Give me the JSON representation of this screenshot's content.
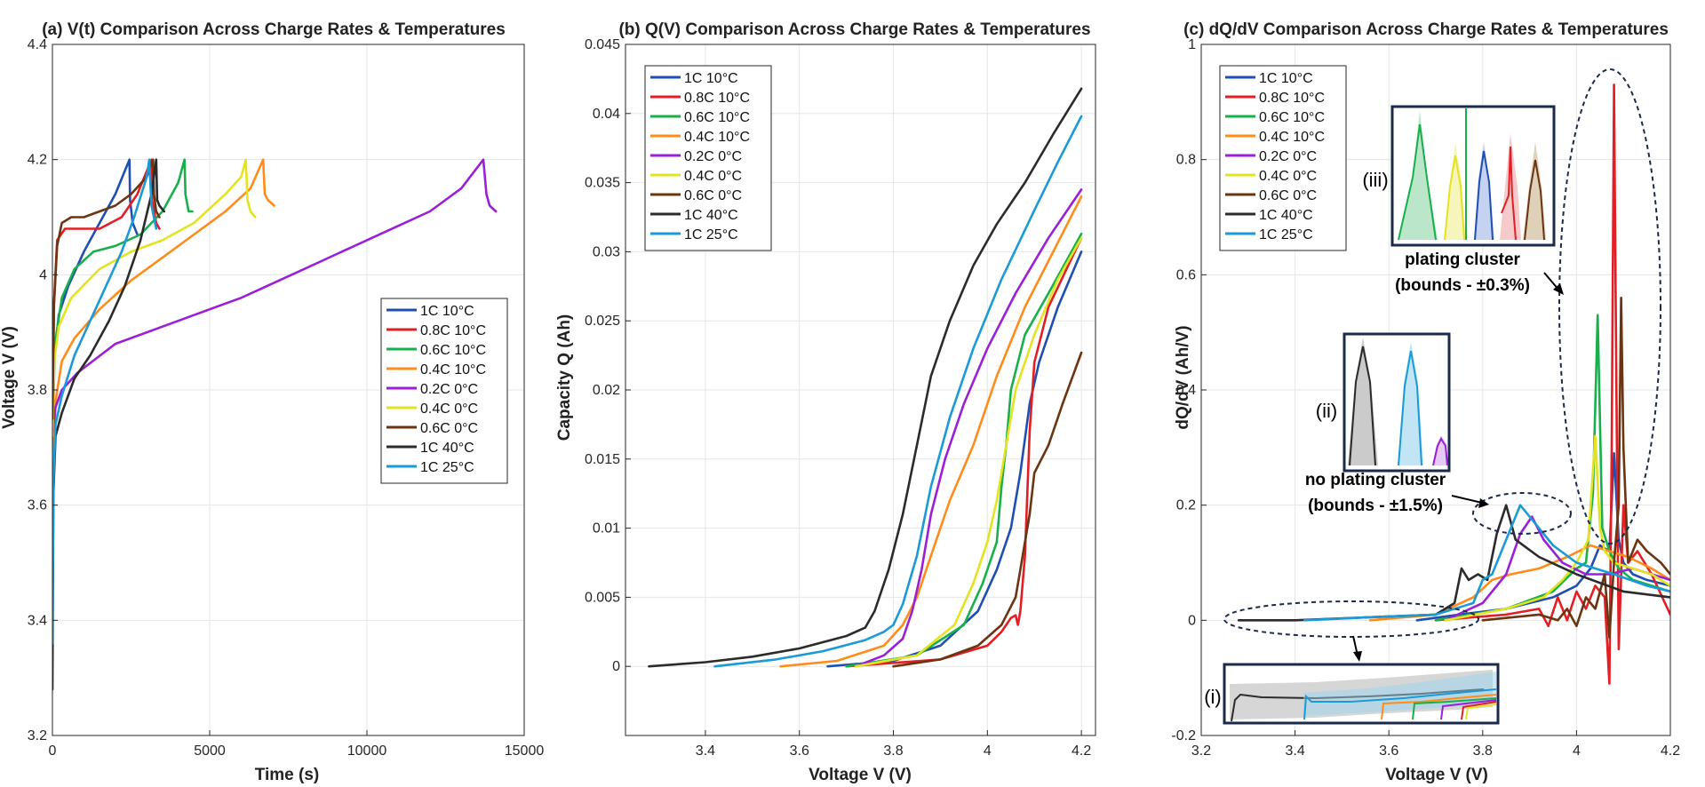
{
  "series_colors": {
    "1C 10°C": "#1f4fb3",
    "0.8C 10°C": "#e31e24",
    "0.6C 10°C": "#17b04a",
    "0.4C 10°C": "#ff8c1a",
    "0.2C 0°C": "#9b1fd6",
    "0.4C 0°C": "#e3e321",
    "0.6C 0°C": "#6b3512",
    "1C 40°C": "#2b2b2b",
    "1C 25°C": "#1a9bd7"
  },
  "chart_data": [
    {
      "type": "line",
      "title": "(a) V(t) Comparison Across Charge Rates & Temperatures",
      "xlabel": "Time (s)",
      "ylabel": "Voltage V (V)",
      "xlim": [
        0,
        15000
      ],
      "ylim": [
        3.2,
        4.4
      ],
      "xticks": [
        0,
        5000,
        10000,
        15000
      ],
      "xtick_labels": [
        "0",
        "5000",
        "10000",
        "15000"
      ],
      "yticks": [
        3.2,
        3.4,
        3.6,
        3.8,
        4.0,
        4.2,
        4.4
      ],
      "ytick_labels": [
        "3.2",
        "3.4",
        "3.6",
        "3.8",
        "4",
        "4.2",
        "4.4"
      ],
      "grid": true,
      "legend": [
        "1C 10°C",
        "0.8C 10°C",
        "0.6C 10°C",
        "0.4C 10°C",
        "0.2C 0°C",
        "0.4C 0°C",
        "0.6C 0°C",
        "1C 40°C",
        "1C 25°C"
      ],
      "series": [
        {
          "name": "1C 10°C",
          "x": [
            0,
            50,
            200,
            500,
            1000,
            1500,
            2000,
            2300,
            2450,
            2470,
            2550,
            2700
          ],
          "y": [
            3.66,
            3.85,
            3.93,
            3.98,
            4.04,
            4.09,
            4.14,
            4.18,
            4.2,
            4.13,
            4.09,
            4.07
          ]
        },
        {
          "name": "0.8C 10°C",
          "x": [
            0,
            50,
            150,
            400,
            800,
            1500,
            2200,
            2700,
            3000,
            3150,
            3170,
            3300,
            3400
          ],
          "y": [
            3.7,
            3.95,
            4.06,
            4.08,
            4.08,
            4.08,
            4.1,
            4.14,
            4.18,
            4.2,
            4.13,
            4.09,
            4.08
          ]
        },
        {
          "name": "0.6C 10°C",
          "x": [
            0,
            80,
            300,
            700,
            1300,
            2000,
            2800,
            3500,
            4000,
            4200,
            4230,
            4330,
            4450
          ],
          "y": [
            3.7,
            3.88,
            3.96,
            4.01,
            4.04,
            4.05,
            4.07,
            4.11,
            4.16,
            4.2,
            4.14,
            4.11,
            4.11
          ]
        },
        {
          "name": "0.4C 10°C",
          "x": [
            0,
            100,
            300,
            700,
            1500,
            2500,
            3500,
            4500,
            5500,
            6300,
            6700,
            6750,
            6850,
            7050
          ],
          "y": [
            3.6,
            3.78,
            3.85,
            3.89,
            3.94,
            3.99,
            4.03,
            4.07,
            4.11,
            4.15,
            4.2,
            4.14,
            4.13,
            4.12
          ]
        },
        {
          "name": "0.2C 0°C",
          "x": [
            0,
            100,
            300,
            800,
            2000,
            4000,
            6000,
            8000,
            10000,
            12000,
            13000,
            13700,
            13800,
            13900,
            14100
          ],
          "y": [
            3.72,
            3.77,
            3.8,
            3.83,
            3.88,
            3.92,
            3.96,
            4.01,
            4.06,
            4.11,
            4.15,
            4.2,
            4.14,
            4.12,
            4.11
          ]
        },
        {
          "name": "0.4C 0°C",
          "x": [
            0,
            60,
            200,
            600,
            1500,
            2500,
            3500,
            4500,
            5500,
            6000,
            6150,
            6200,
            6300,
            6450
          ],
          "y": [
            3.72,
            3.85,
            3.91,
            3.96,
            4.01,
            4.04,
            4.06,
            4.09,
            4.14,
            4.17,
            4.2,
            4.13,
            4.11,
            4.1
          ]
        },
        {
          "name": "0.6C 0°C",
          "x": [
            0,
            50,
            150,
            300,
            600,
            1000,
            1500,
            2000,
            2500,
            3000,
            3200,
            3230,
            3300,
            3400
          ],
          "y": [
            3.75,
            3.95,
            4.05,
            4.09,
            4.1,
            4.1,
            4.11,
            4.12,
            4.14,
            4.17,
            4.2,
            4.14,
            4.11,
            4.1
          ]
        },
        {
          "name": "1C 40°C",
          "x": [
            0,
            30,
            100,
            300,
            700,
            1200,
            1800,
            2300,
            2800,
            3150,
            3300,
            3330,
            3400,
            3550
          ],
          "y": [
            3.28,
            3.62,
            3.72,
            3.76,
            3.82,
            3.86,
            3.92,
            3.98,
            4.06,
            4.14,
            4.2,
            4.13,
            4.12,
            4.11
          ]
        },
        {
          "name": "1C 25°C",
          "x": [
            0,
            30,
            100,
            300,
            700,
            1200,
            1700,
            2200,
            2600,
            3000,
            3080,
            3150,
            3300
          ],
          "y": [
            3.36,
            3.64,
            3.74,
            3.79,
            3.86,
            3.92,
            3.98,
            4.04,
            4.1,
            4.17,
            4.2,
            4.12,
            4.08
          ]
        }
      ]
    },
    {
      "type": "line",
      "title": "(b) Q(V) Comparison Across Charge Rates & Temperatures",
      "xlabel": "Voltage V (V)",
      "ylabel": "Capacity Q (Ah)",
      "xlim": [
        3.23,
        4.23
      ],
      "ylim": [
        -0.005,
        0.045
      ],
      "xticks": [
        3.4,
        3.6,
        3.8,
        4.0,
        4.2
      ],
      "xtick_labels": [
        "3.4",
        "3.6",
        "3.8",
        "4",
        "4.2"
      ],
      "yticks": [
        0,
        0.005,
        0.01,
        0.015,
        0.02,
        0.025,
        0.03,
        0.035,
        0.04,
        0.045
      ],
      "ytick_labels": [
        "0",
        "0.005",
        "0.01",
        "0.015",
        "0.02",
        "0.025",
        "0.03",
        "0.035",
        "0.04",
        "0.045"
      ],
      "grid": true,
      "legend": [
        "1C 10°C",
        "0.8C 10°C",
        "0.6C 10°C",
        "0.4C 10°C",
        "0.2C 0°C",
        "0.4C 0°C",
        "0.6C 0°C",
        "1C 40°C",
        "1C 25°C"
      ],
      "series": [
        {
          "name": "1C 10°C",
          "x": [
            3.66,
            3.8,
            3.9,
            3.98,
            4.02,
            4.05,
            4.07,
            4.09,
            4.11,
            4.15,
            4.2
          ],
          "y": [
            0,
            0.0004,
            0.0015,
            0.004,
            0.007,
            0.01,
            0.014,
            0.019,
            0.022,
            0.026,
            0.03
          ]
        },
        {
          "name": "0.8C 10°C",
          "x": [
            3.7,
            3.9,
            4.0,
            4.03,
            4.04,
            4.05,
            4.06,
            4.065,
            4.07,
            4.08,
            4.09,
            4.1,
            4.13,
            4.2
          ],
          "y": [
            0,
            0.0005,
            0.0015,
            0.0025,
            0.003,
            0.0035,
            0.0037,
            0.003,
            0.004,
            0.008,
            0.017,
            0.022,
            0.026,
            0.031
          ]
        },
        {
          "name": "0.6C 10°C",
          "x": [
            3.7,
            3.85,
            3.95,
            3.99,
            4.02,
            4.03,
            4.04,
            4.05,
            4.08,
            4.13,
            4.2
          ],
          "y": [
            0,
            0.0008,
            0.003,
            0.006,
            0.009,
            0.013,
            0.016,
            0.02,
            0.024,
            0.027,
            0.0313
          ]
        },
        {
          "name": "0.4C 10°C",
          "x": [
            3.56,
            3.68,
            3.78,
            3.82,
            3.85,
            3.88,
            3.92,
            3.97,
            4.02,
            4.08,
            4.14,
            4.2
          ],
          "y": [
            0,
            0.0004,
            0.0015,
            0.003,
            0.005,
            0.008,
            0.012,
            0.016,
            0.021,
            0.026,
            0.03,
            0.034
          ]
        },
        {
          "name": "0.2C 0°C",
          "x": [
            3.72,
            3.78,
            3.82,
            3.84,
            3.86,
            3.88,
            3.91,
            3.95,
            4.0,
            4.06,
            4.13,
            4.2
          ],
          "y": [
            0,
            0.0008,
            0.002,
            0.004,
            0.007,
            0.011,
            0.015,
            0.019,
            0.023,
            0.027,
            0.031,
            0.0345
          ]
        },
        {
          "name": "0.4C 0°C",
          "x": [
            3.72,
            3.85,
            3.93,
            3.97,
            4.0,
            4.02,
            4.04,
            4.06,
            4.1,
            4.15,
            4.2
          ],
          "y": [
            0,
            0.0008,
            0.003,
            0.006,
            0.009,
            0.012,
            0.016,
            0.02,
            0.024,
            0.028,
            0.031
          ]
        },
        {
          "name": "0.6C 0°C",
          "x": [
            3.8,
            3.9,
            3.98,
            4.03,
            4.06,
            4.07,
            4.08,
            4.09,
            4.1,
            4.13,
            4.16,
            4.2
          ],
          "y": [
            0,
            0.0005,
            0.0015,
            0.003,
            0.005,
            0.007,
            0.009,
            0.011,
            0.014,
            0.016,
            0.019,
            0.0227
          ]
        },
        {
          "name": "1C 40°C",
          "x": [
            3.28,
            3.4,
            3.5,
            3.6,
            3.7,
            3.74,
            3.76,
            3.79,
            3.82,
            3.85,
            3.88,
            3.92,
            3.97,
            4.02,
            4.08,
            4.14,
            4.2
          ],
          "y": [
            0,
            0.0003,
            0.0007,
            0.0013,
            0.0022,
            0.0028,
            0.004,
            0.007,
            0.011,
            0.016,
            0.021,
            0.025,
            0.029,
            0.032,
            0.035,
            0.0385,
            0.0418
          ]
        },
        {
          "name": "1C 25°C",
          "x": [
            3.42,
            3.55,
            3.65,
            3.74,
            3.78,
            3.8,
            3.82,
            3.85,
            3.88,
            3.92,
            3.97,
            4.03,
            4.1,
            4.15,
            4.2
          ],
          "y": [
            0,
            0.0005,
            0.0011,
            0.0019,
            0.0025,
            0.003,
            0.0045,
            0.008,
            0.013,
            0.018,
            0.023,
            0.028,
            0.033,
            0.0365,
            0.0398
          ]
        }
      ]
    },
    {
      "type": "line",
      "title": "(c) dQ/dV Comparison Across Charge Rates & Temperatures",
      "xlabel": "Voltage V (V)",
      "ylabel": "dQ/dV (Ah/V)",
      "xlim": [
        3.2,
        4.2
      ],
      "ylim": [
        -0.2,
        1.0
      ],
      "xticks": [
        3.2,
        3.4,
        3.6,
        3.8,
        4.0,
        4.2
      ],
      "xtick_labels": [
        "3.2",
        "3.4",
        "3.6",
        "3.8",
        "4",
        "4.2"
      ],
      "yticks": [
        -0.2,
        0,
        0.2,
        0.4,
        0.6,
        0.8,
        1.0
      ],
      "ytick_labels": [
        "-0.2",
        "0",
        "0.2",
        "0.4",
        "0.6",
        "0.8",
        "1"
      ],
      "grid": true,
      "legend": [
        "1C 10°C",
        "0.8C 10°C",
        "0.6C 10°C",
        "0.4C 10°C",
        "0.2C 0°C",
        "0.4C 0°C",
        "0.6C 0°C",
        "1C 40°C",
        "1C 25°C"
      ],
      "annotations": {
        "plating_cluster": "plating cluster",
        "plating_bounds": "(bounds - ±0.3%)",
        "no_plating_cluster": "no plating cluster",
        "no_plating_bounds": "(bounds - ±1.5%)",
        "inset_i": "(i)",
        "inset_ii": "(ii)",
        "inset_iii": "(iii)"
      },
      "series": [
        {
          "name": "1C 10°C",
          "x": [
            3.66,
            3.75,
            3.85,
            3.95,
            4.0,
            4.03,
            4.05,
            4.07,
            4.08,
            4.09,
            4.1,
            4.12,
            4.15,
            4.2
          ],
          "y": [
            0,
            0.01,
            0.02,
            0.04,
            0.06,
            0.09,
            0.13,
            0.12,
            0.29,
            0.14,
            0.1,
            0.08,
            0.07,
            0.06
          ]
        },
        {
          "name": "0.8C 10°C",
          "x": [
            3.7,
            3.85,
            3.92,
            3.94,
            3.96,
            3.98,
            4.0,
            4.02,
            4.04,
            4.06,
            4.07,
            4.075,
            4.08,
            4.085,
            4.09,
            4.1,
            4.11,
            4.13,
            4.16,
            4.2
          ],
          "y": [
            0,
            0.01,
            0.02,
            -0.01,
            0.04,
            0.0,
            0.05,
            0.02,
            0.06,
            0.04,
            -0.11,
            0.3,
            0.93,
            0.4,
            -0.05,
            0.2,
            0.1,
            0.12,
            0.08,
            0.01
          ]
        },
        {
          "name": "0.6C 10°C",
          "x": [
            3.7,
            3.85,
            3.95,
            4.0,
            4.02,
            4.035,
            4.045,
            4.055,
            4.07,
            4.09,
            4.12,
            4.16,
            4.2
          ],
          "y": [
            0,
            0.02,
            0.05,
            0.09,
            0.1,
            0.22,
            0.53,
            0.16,
            0.12,
            0.09,
            0.07,
            0.06,
            0.05
          ]
        },
        {
          "name": "0.4C 10°C",
          "x": [
            3.56,
            3.7,
            3.78,
            3.82,
            3.86,
            3.92,
            3.98,
            4.03,
            4.07,
            4.11,
            4.16,
            4.2
          ],
          "y": [
            0,
            0.01,
            0.04,
            0.07,
            0.08,
            0.09,
            0.11,
            0.13,
            0.12,
            0.11,
            0.09,
            0.07
          ]
        },
        {
          "name": "0.2C 0°C",
          "x": [
            3.72,
            3.8,
            3.85,
            3.88,
            3.905,
            3.93,
            3.97,
            4.02,
            4.07,
            4.12,
            4.16,
            4.2
          ],
          "y": [
            0,
            0.03,
            0.08,
            0.15,
            0.18,
            0.14,
            0.1,
            0.08,
            0.08,
            0.09,
            0.08,
            0.07
          ]
        },
        {
          "name": "0.4C 0°C",
          "x": [
            3.72,
            3.85,
            3.93,
            3.97,
            4.0,
            4.025,
            4.04,
            4.05,
            4.06,
            4.08,
            4.12,
            4.16,
            4.2
          ],
          "y": [
            0,
            0.02,
            0.04,
            0.07,
            0.1,
            0.14,
            0.32,
            0.16,
            0.12,
            0.1,
            0.09,
            0.08,
            0.06
          ]
        },
        {
          "name": "0.6C 0°C",
          "x": [
            3.8,
            3.92,
            3.96,
            3.98,
            4.0,
            4.02,
            4.04,
            4.06,
            4.07,
            4.08,
            4.09,
            4.095,
            4.1,
            4.11,
            4.13,
            4.15,
            4.18,
            4.2
          ],
          "y": [
            0,
            0.01,
            0.0,
            0.02,
            -0.01,
            0.04,
            0.02,
            0.08,
            -0.03,
            0.1,
            0.2,
            0.56,
            0.3,
            0.1,
            0.14,
            0.12,
            0.1,
            0.08
          ]
        },
        {
          "name": "1C 40°C",
          "x": [
            3.28,
            3.4,
            3.55,
            3.7,
            3.74,
            3.755,
            3.77,
            3.79,
            3.81,
            3.83,
            3.85,
            3.87,
            3.92,
            4.0,
            4.1,
            4.2
          ],
          "y": [
            0,
            0.0,
            0.005,
            0.01,
            0.03,
            0.09,
            0.07,
            0.08,
            0.07,
            0.15,
            0.2,
            0.14,
            0.11,
            0.08,
            0.05,
            0.04
          ]
        },
        {
          "name": "1C 25°C",
          "x": [
            3.42,
            3.55,
            3.7,
            3.78,
            3.8,
            3.82,
            3.85,
            3.88,
            3.91,
            3.95,
            4.0,
            4.08,
            4.15,
            4.2
          ],
          "y": [
            0,
            0.005,
            0.01,
            0.03,
            0.07,
            0.08,
            0.14,
            0.2,
            0.17,
            0.13,
            0.1,
            0.08,
            0.06,
            0.05
          ]
        }
      ]
    }
  ]
}
